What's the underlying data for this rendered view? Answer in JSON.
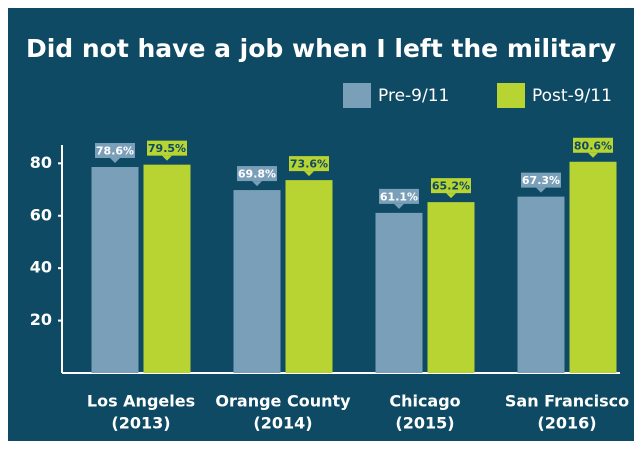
{
  "chart_data": {
    "type": "bar",
    "title": "Did not have a job when I left the military",
    "categories": [
      [
        "Los Angeles",
        "(2013)"
      ],
      [
        "Orange County",
        "(2014)"
      ],
      [
        "Chicago",
        "(2015)"
      ],
      [
        "San Francisco",
        "(2016)"
      ]
    ],
    "series": [
      {
        "name": "Pre-9/11",
        "color": "#7a9fb9",
        "values": [
          78.6,
          69.8,
          61.1,
          67.3
        ],
        "value_labels": [
          "78.6%",
          "69.8%",
          "61.1%",
          "67.3%"
        ]
      },
      {
        "name": "Post-9/11",
        "color": "#b8d433",
        "values": [
          79.5,
          73.6,
          65.2,
          80.6
        ],
        "value_labels": [
          "79.5%",
          "73.6%",
          "65.2%",
          "80.6%"
        ]
      }
    ],
    "ylim": [
      0,
      87
    ],
    "yticks": [
      20,
      40,
      60,
      80
    ]
  }
}
